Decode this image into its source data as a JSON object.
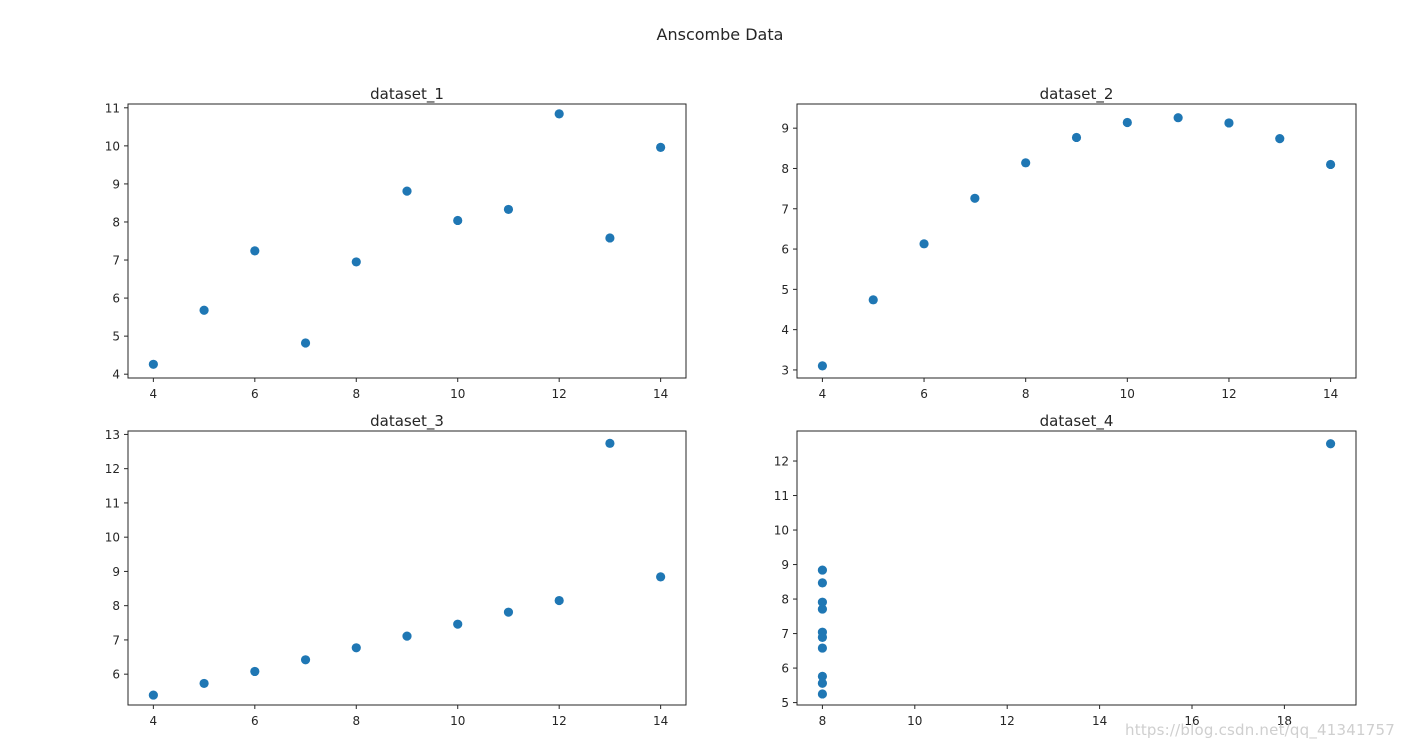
{
  "figure": {
    "suptitle": "Anscombe Data",
    "watermark": "https://blog.csdn.net/qq_41341757"
  },
  "colors": {
    "marker": "#1f77b4",
    "axes": "#262626",
    "background": "#ffffff"
  },
  "chart_data": [
    {
      "type": "scatter",
      "title": "dataset_1",
      "xlim": [
        3.5,
        14.5
      ],
      "ylim": [
        3.9,
        11.1
      ],
      "xticks": [
        4,
        6,
        8,
        10,
        12,
        14
      ],
      "yticks": [
        4,
        5,
        6,
        7,
        8,
        9,
        10,
        11
      ],
      "grid": false,
      "x": [
        10,
        8,
        13,
        9,
        11,
        14,
        6,
        4,
        12,
        7,
        5
      ],
      "y": [
        8.04,
        6.95,
        7.58,
        8.81,
        8.33,
        9.96,
        7.24,
        4.26,
        10.84,
        4.82,
        5.68
      ]
    },
    {
      "type": "scatter",
      "title": "dataset_2",
      "xlim": [
        3.5,
        14.5
      ],
      "ylim": [
        2.8,
        9.6
      ],
      "xticks": [
        4,
        6,
        8,
        10,
        12,
        14
      ],
      "yticks": [
        3,
        4,
        5,
        6,
        7,
        8,
        9
      ],
      "grid": false,
      "x": [
        10,
        8,
        13,
        9,
        11,
        14,
        6,
        4,
        12,
        7,
        5
      ],
      "y": [
        9.14,
        8.14,
        8.74,
        8.77,
        9.26,
        8.1,
        6.13,
        3.1,
        9.13,
        7.26,
        4.74
      ]
    },
    {
      "type": "scatter",
      "title": "dataset_3",
      "xlim": [
        3.5,
        14.5
      ],
      "ylim": [
        5.1,
        13.1
      ],
      "xticks": [
        4,
        6,
        8,
        10,
        12,
        14
      ],
      "yticks": [
        6,
        7,
        8,
        9,
        10,
        11,
        12,
        13
      ],
      "grid": false,
      "x": [
        10,
        8,
        13,
        9,
        11,
        14,
        6,
        4,
        12,
        7,
        5
      ],
      "y": [
        7.46,
        6.77,
        12.74,
        7.11,
        7.81,
        8.84,
        6.08,
        5.39,
        8.15,
        6.42,
        5.73
      ]
    },
    {
      "type": "scatter",
      "title": "dataset_4",
      "xlim": [
        7.45,
        19.55
      ],
      "ylim": [
        4.93,
        12.87
      ],
      "xticks": [
        8,
        10,
        12,
        14,
        16,
        18
      ],
      "yticks": [
        5,
        6,
        7,
        8,
        9,
        10,
        11,
        12
      ],
      "grid": false,
      "x": [
        8,
        8,
        8,
        8,
        8,
        8,
        8,
        19,
        8,
        8,
        8
      ],
      "y": [
        6.58,
        5.76,
        7.71,
        8.84,
        8.47,
        7.04,
        5.25,
        12.5,
        5.56,
        7.91,
        6.89
      ]
    }
  ]
}
